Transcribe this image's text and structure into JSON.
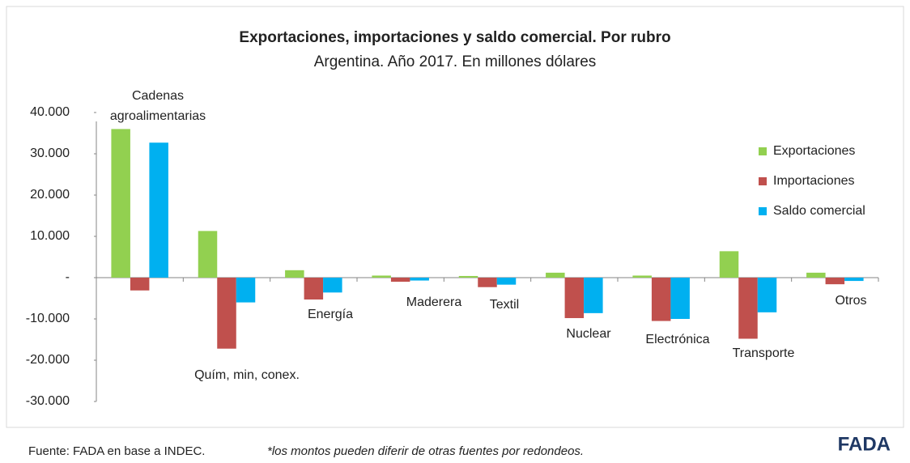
{
  "chart_data": {
    "type": "bar",
    "title": "Exportaciones, importaciones y saldo comercial. Por rubro",
    "subtitle": "Argentina. Año 2017. En millones dólares",
    "categories": [
      "Cadenas agroalimentarias",
      "Quím, min, conex.",
      "Energía",
      "Maderera",
      "Textil",
      "Nuclear",
      "Electrónica",
      "Transporte",
      "Otros"
    ],
    "series": [
      {
        "name": "Exportaciones",
        "color": "#92d050",
        "values": [
          36000,
          11300,
          1800,
          500,
          400,
          1200,
          500,
          6400,
          1200
        ]
      },
      {
        "name": "Importaciones",
        "color": "#c0504d",
        "values": [
          -3100,
          -17200,
          -5300,
          -1000,
          -2300,
          -9800,
          -10500,
          -14800,
          -1600
        ]
      },
      {
        "name": "Saldo comercial",
        "color": "#00b0f0",
        "values": [
          32700,
          -6000,
          -3600,
          -700,
          -1700,
          -8600,
          -10000,
          -8400,
          -800
        ]
      }
    ],
    "ylim": [
      -30000,
      40000
    ],
    "yticks": [
      {
        "value": -30000,
        "label": "-30.000"
      },
      {
        "value": -20000,
        "label": "-20.000"
      },
      {
        "value": -10000,
        "label": "-10.000"
      },
      {
        "value": 0,
        "label": "-"
      },
      {
        "value": 10000,
        "label": "10.000"
      },
      {
        "value": 20000,
        "label": "20.000"
      },
      {
        "value": 30000,
        "label": "30.000"
      },
      {
        "value": 40000,
        "label": "40.000"
      }
    ],
    "legend": "right",
    "source": "Fuente: FADA  en base a INDEC.",
    "note": "*los montos pueden diferir de otras fuentes por redondeos.",
    "logo": "FADA"
  }
}
